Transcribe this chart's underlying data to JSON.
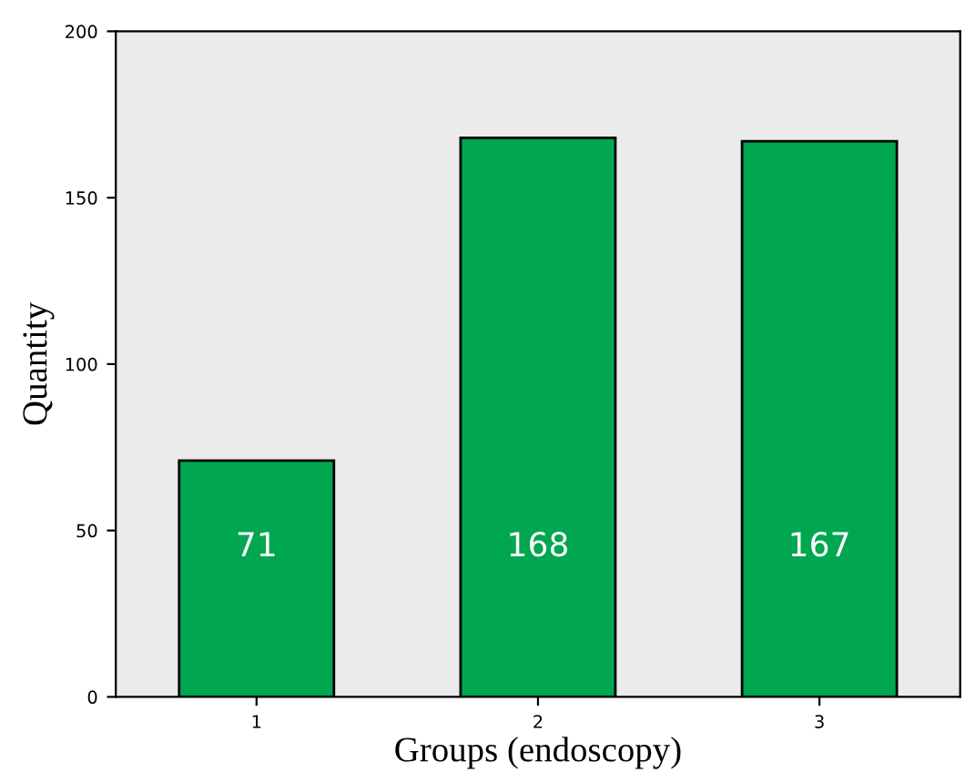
{
  "chart_data": {
    "type": "bar",
    "xlabel": "Groups (endoscopy)",
    "ylabel": "Quantity",
    "categories": [
      "1",
      "2",
      "3"
    ],
    "values": [
      71,
      168,
      167
    ],
    "color": "#00a650",
    "ylim": [
      0,
      200
    ],
    "yticks": [
      0,
      50,
      100,
      150,
      200
    ],
    "grid": false,
    "data_labels": true
  }
}
